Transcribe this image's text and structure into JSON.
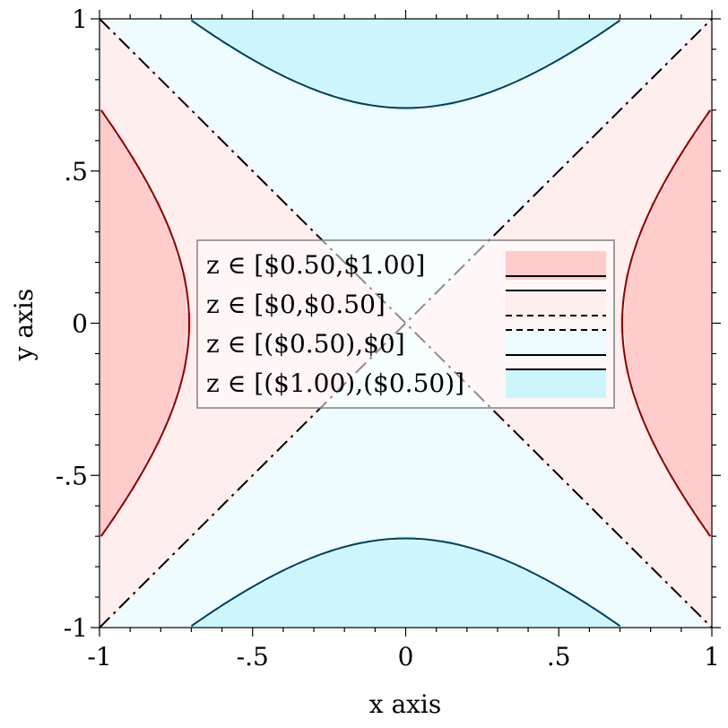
{
  "chart_data": {
    "type": "contour",
    "function": "z = x^2 - y^2",
    "xlabel": "x axis",
    "ylabel": "y axis",
    "xlim": [
      -1,
      1
    ],
    "ylim": [
      -1,
      1
    ],
    "x_ticks": [
      {
        "value": -1,
        "label": "-1"
      },
      {
        "value": -0.5,
        "label": "-.5"
      },
      {
        "value": 0,
        "label": "0"
      },
      {
        "value": 0.5,
        "label": ".5"
      },
      {
        "value": 1,
        "label": "1"
      }
    ],
    "y_ticks": [
      {
        "value": -1,
        "label": "-1"
      },
      {
        "value": -0.5,
        "label": "-.5"
      },
      {
        "value": 0,
        "label": "0"
      },
      {
        "value": 0.5,
        "label": ".5"
      },
      {
        "value": 1,
        "label": "1"
      }
    ],
    "contour_levels": [
      {
        "level": 0.5,
        "color": "#8b0000",
        "style": "solid"
      },
      {
        "level": 0,
        "color": "#000000",
        "style": "dashdot"
      },
      {
        "level": -0.5,
        "color": "#003f5c",
        "style": "solid"
      }
    ],
    "bands": [
      {
        "label": "z ∈ [$0.50,$1.00]",
        "range": [
          0.5,
          1.0
        ],
        "fill": "#ffcccc"
      },
      {
        "label": "z ∈ [$0,$0.50]",
        "range": [
          0,
          0.5
        ],
        "fill": "#ffeeee"
      },
      {
        "label": "z ∈ [($0.50),$0]",
        "range": [
          -0.5,
          0
        ],
        "fill": "#eefcff"
      },
      {
        "label": "z ∈ [($1.00),($0.50)]",
        "range": [
          -1.0,
          -0.5
        ],
        "fill": "#ccf5fc"
      }
    ],
    "legend_position": "center",
    "grid": false
  }
}
